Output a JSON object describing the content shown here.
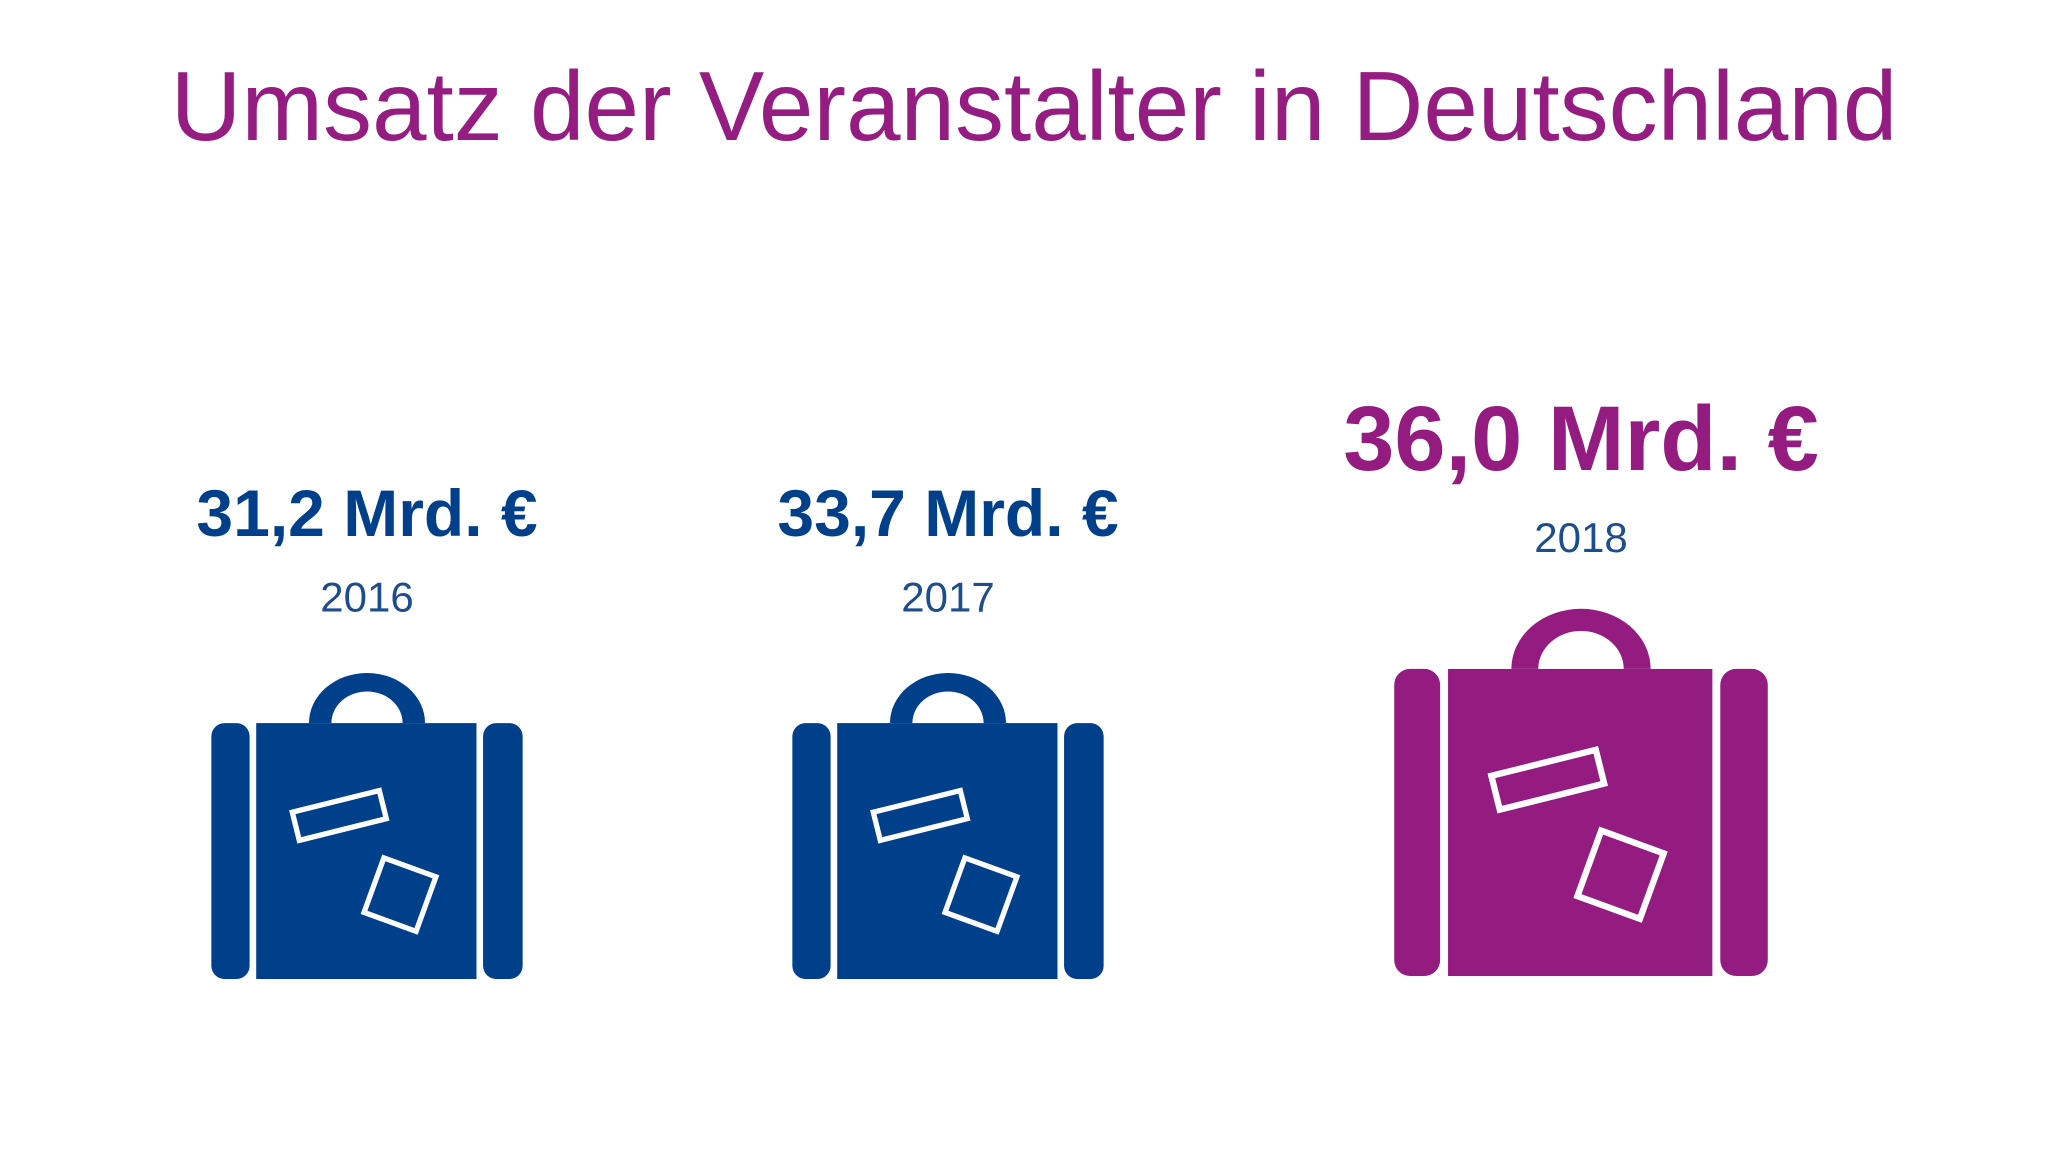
{
  "chart_data": {
    "type": "pictogram",
    "title": "Umsatz der Veranstalter in Deutschland",
    "categories": [
      "2016",
      "2017",
      "2018"
    ],
    "values": [
      31.2,
      33.7,
      36.0
    ],
    "value_labels": [
      "31,2 Mrd. €",
      "33,7 Mrd. €",
      "36,0 Mrd. €"
    ],
    "colors": [
      "#00408a",
      "#00408a",
      "#941b80"
    ]
  }
}
